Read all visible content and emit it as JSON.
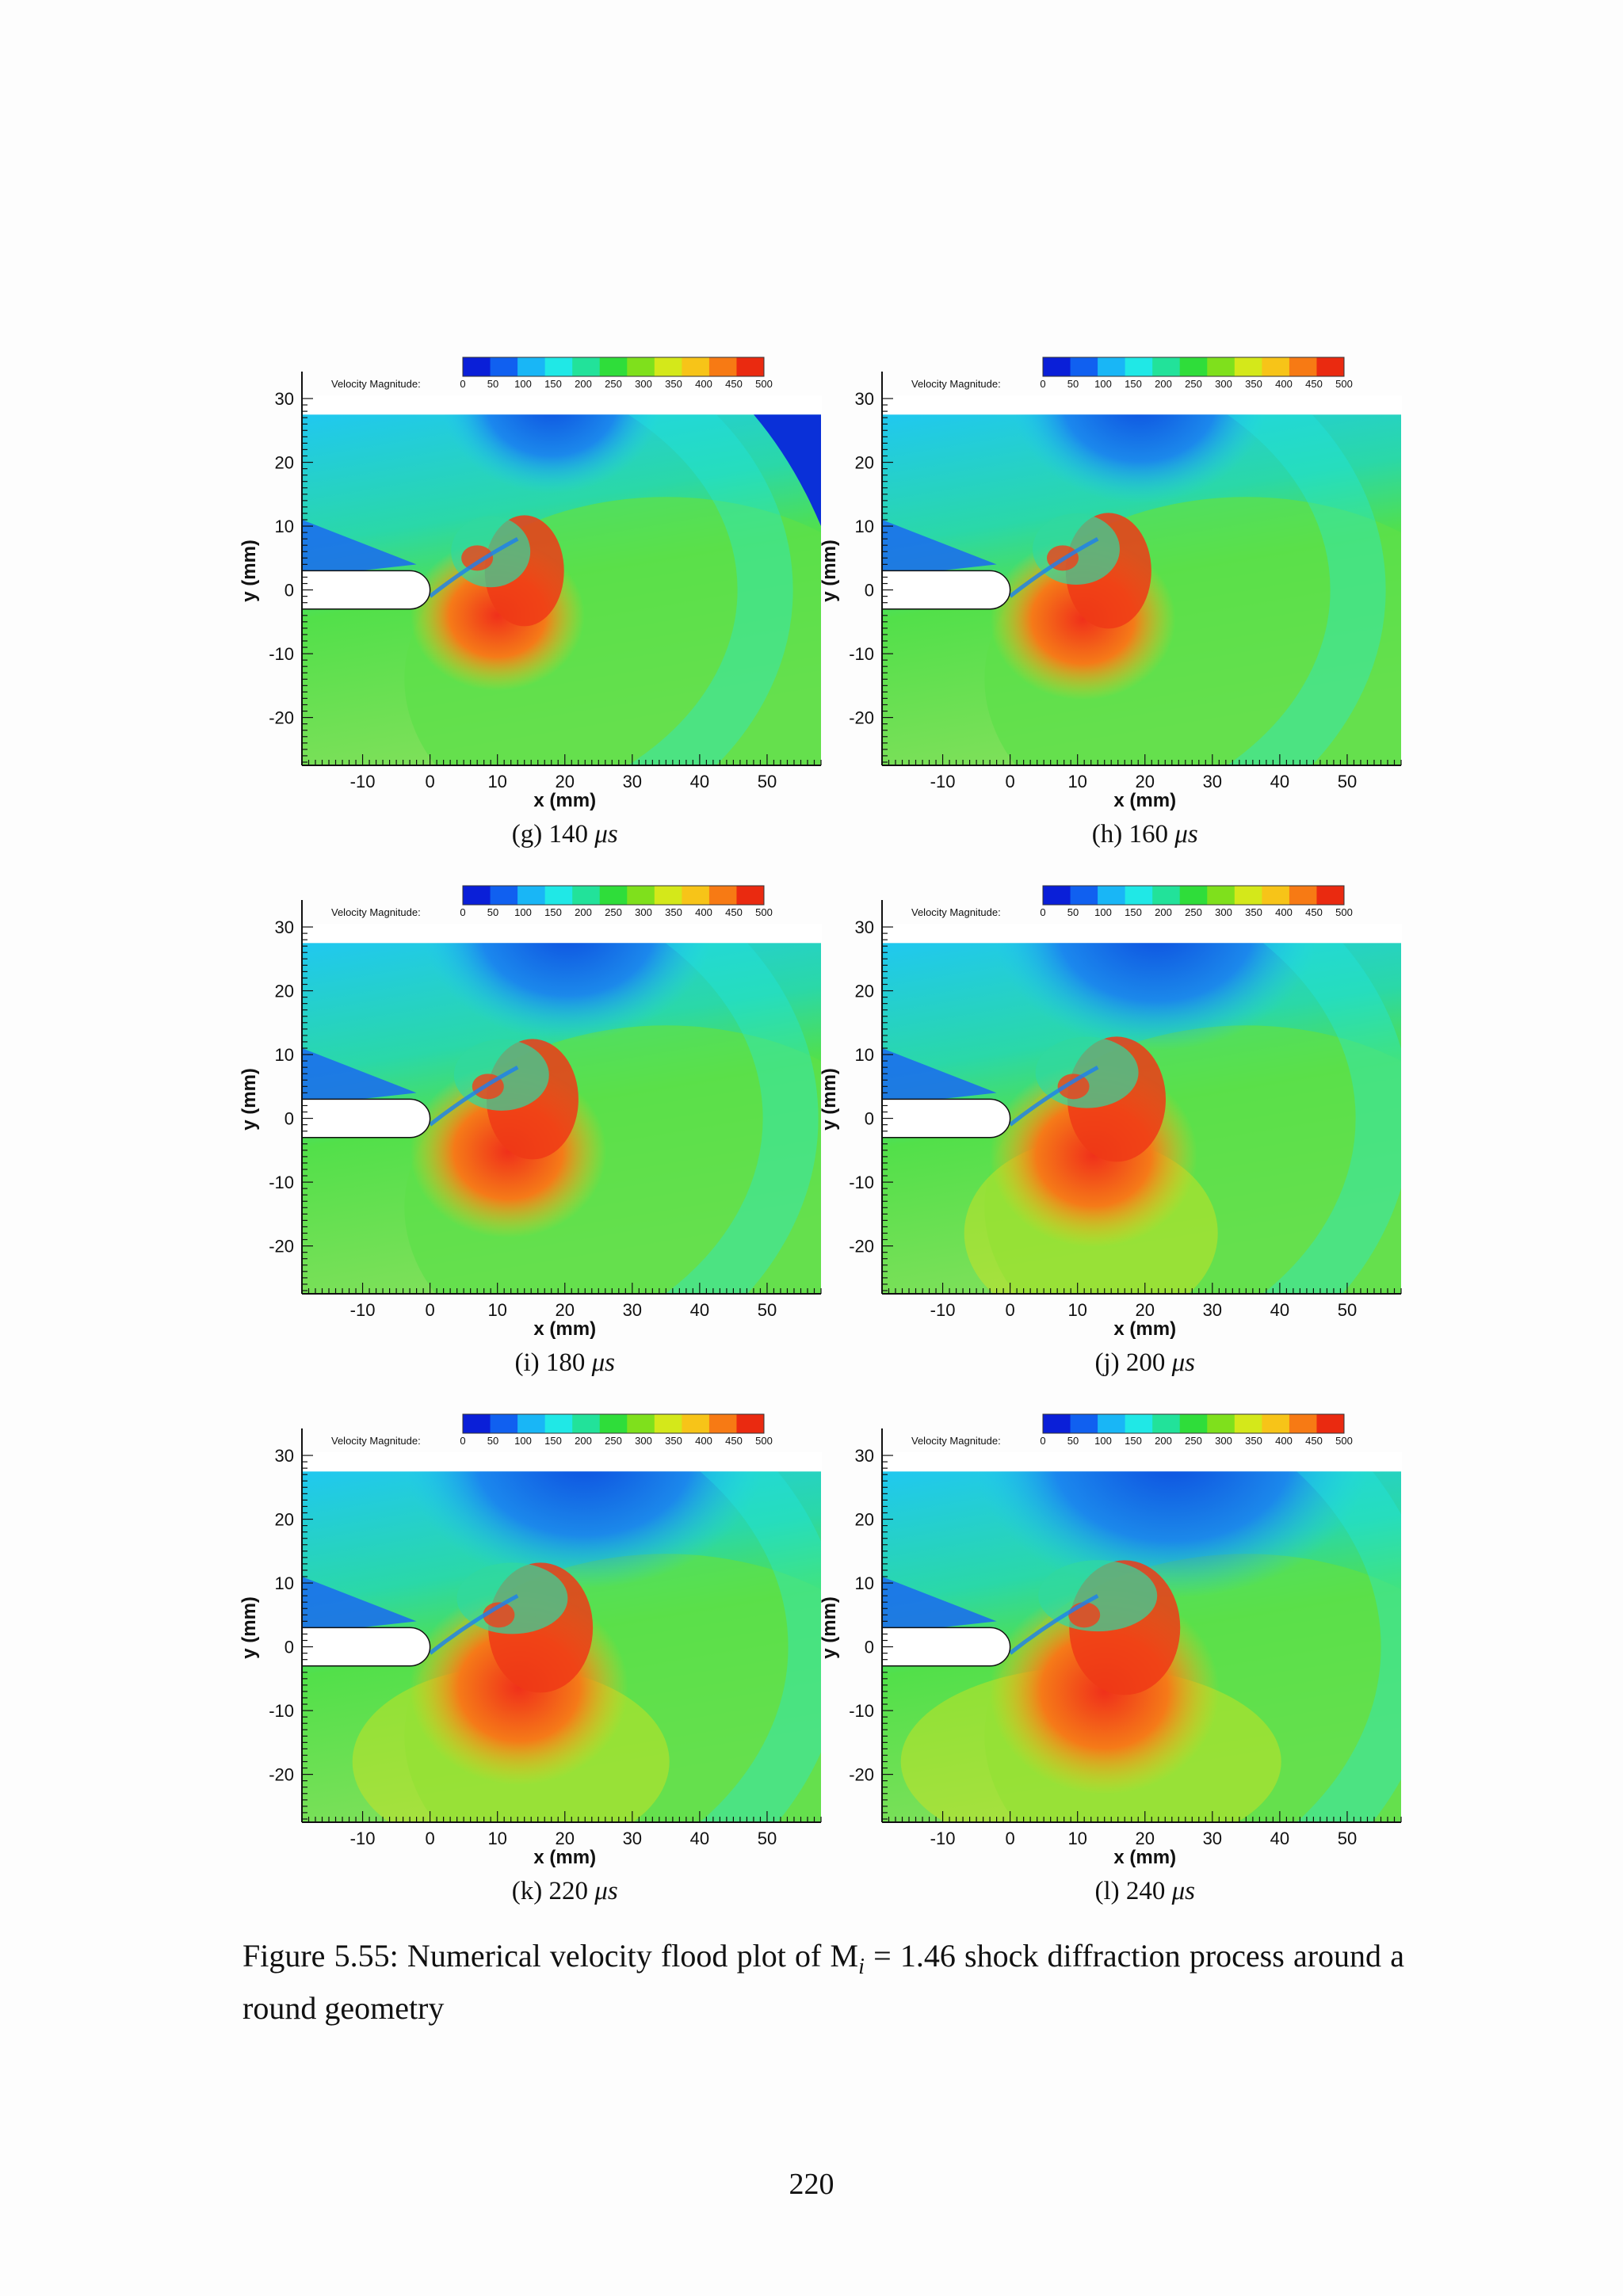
{
  "colorbar": {
    "label": "Velocity Magnitude:",
    "ticks": [
      "0",
      "50",
      "100",
      "150",
      "200",
      "250",
      "300",
      "350",
      "400",
      "450",
      "500"
    ],
    "colors": [
      "#0a1fd8",
      "#1060f0",
      "#19b6f6",
      "#20e8e6",
      "#22e29a",
      "#2fdd3a",
      "#7fe01c",
      "#d4e81a",
      "#f7c418",
      "#f77a14",
      "#ea2a10"
    ]
  },
  "axes": {
    "xlabel": "x (mm)",
    "ylabel": "y (mm)",
    "xticks": [
      "-10",
      "0",
      "10",
      "20",
      "30",
      "40",
      "50"
    ],
    "yticks": [
      "30",
      "20",
      "10",
      "0",
      "-10",
      "-20"
    ]
  },
  "panels": [
    {
      "id": "g",
      "letter": "(g)",
      "time": "140",
      "unit": "μs"
    },
    {
      "id": "h",
      "letter": "(h)",
      "time": "160",
      "unit": "μs"
    },
    {
      "id": "i",
      "letter": "(i)",
      "time": "180",
      "unit": "μs"
    },
    {
      "id": "j",
      "letter": "(j)",
      "time": "200",
      "unit": "μs"
    },
    {
      "id": "k",
      "letter": "(k)",
      "time": "220",
      "unit": "μs"
    },
    {
      "id": "l",
      "letter": "(l)",
      "time": "240",
      "unit": "μs"
    }
  ],
  "caption": {
    "text": "Figure 5.55: Numerical velocity flood plot of M",
    "subscript": "i",
    "rest": " = 1.46 shock diffraction process around a round geometry"
  },
  "page_number": "220"
}
